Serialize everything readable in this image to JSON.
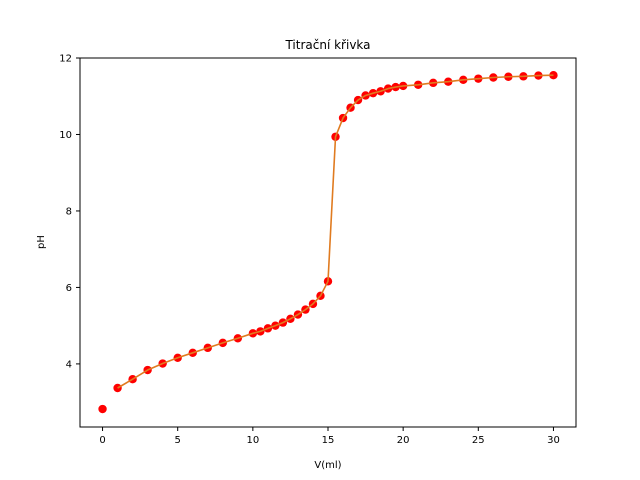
{
  "chart_data": {
    "type": "line",
    "title": "Titrační křivka",
    "xlabel": "V(ml)",
    "ylabel": "pH",
    "xlim": [
      -1.5,
      31.5
    ],
    "ylim": [
      2.35,
      12.0
    ],
    "xticks": [
      0,
      5,
      10,
      15,
      20,
      25,
      30
    ],
    "yticks": [
      4,
      6,
      8,
      10,
      12
    ],
    "grid": false,
    "legend": "none",
    "colors": {
      "points": "#ff0000",
      "line": "#e07b20"
    },
    "series": [
      {
        "marker": "circle",
        "x": [
          0,
          1,
          2,
          3,
          4,
          5,
          6,
          7,
          8,
          9,
          10,
          10.5,
          11,
          11.5,
          12,
          12.5,
          13,
          13.5,
          14,
          14.5,
          15,
          15.5,
          16,
          16.5,
          17,
          17.5,
          18,
          18.5,
          19,
          19.5,
          20,
          21,
          22,
          23,
          24,
          25,
          26,
          27,
          28,
          29,
          30
        ],
        "y": [
          2.82,
          3.37,
          3.6,
          3.84,
          4.01,
          4.16,
          4.29,
          4.42,
          4.55,
          4.67,
          4.8,
          4.85,
          4.93,
          5.0,
          5.08,
          5.18,
          5.29,
          5.42,
          5.57,
          5.78,
          6.16,
          9.94,
          10.43,
          10.7,
          10.9,
          11.02,
          11.08,
          11.13,
          11.2,
          11.24,
          11.27,
          11.3,
          11.35,
          11.38,
          11.43,
          11.46,
          11.49,
          11.51,
          11.52,
          11.54,
          11.55
        ]
      },
      {
        "marker": "line",
        "x": [
          1,
          2,
          3,
          4,
          5,
          6,
          7,
          8,
          9,
          10,
          10.5,
          11,
          11.5,
          12,
          12.5,
          13,
          13.5,
          14,
          14.5,
          15,
          15.5,
          16,
          16.5,
          17,
          17.5,
          18,
          18.5,
          19,
          19.5,
          20,
          21,
          22,
          23,
          24,
          25,
          26,
          27,
          28,
          29,
          30
        ],
        "y": [
          3.37,
          3.6,
          3.84,
          4.01,
          4.16,
          4.29,
          4.42,
          4.55,
          4.67,
          4.8,
          4.85,
          4.93,
          5.0,
          5.08,
          5.18,
          5.29,
          5.42,
          5.57,
          5.78,
          6.16,
          9.94,
          10.43,
          10.7,
          10.9,
          11.02,
          11.08,
          11.13,
          11.2,
          11.24,
          11.27,
          11.3,
          11.35,
          11.38,
          11.43,
          11.46,
          11.49,
          11.51,
          11.52,
          11.54,
          11.55
        ]
      }
    ]
  }
}
